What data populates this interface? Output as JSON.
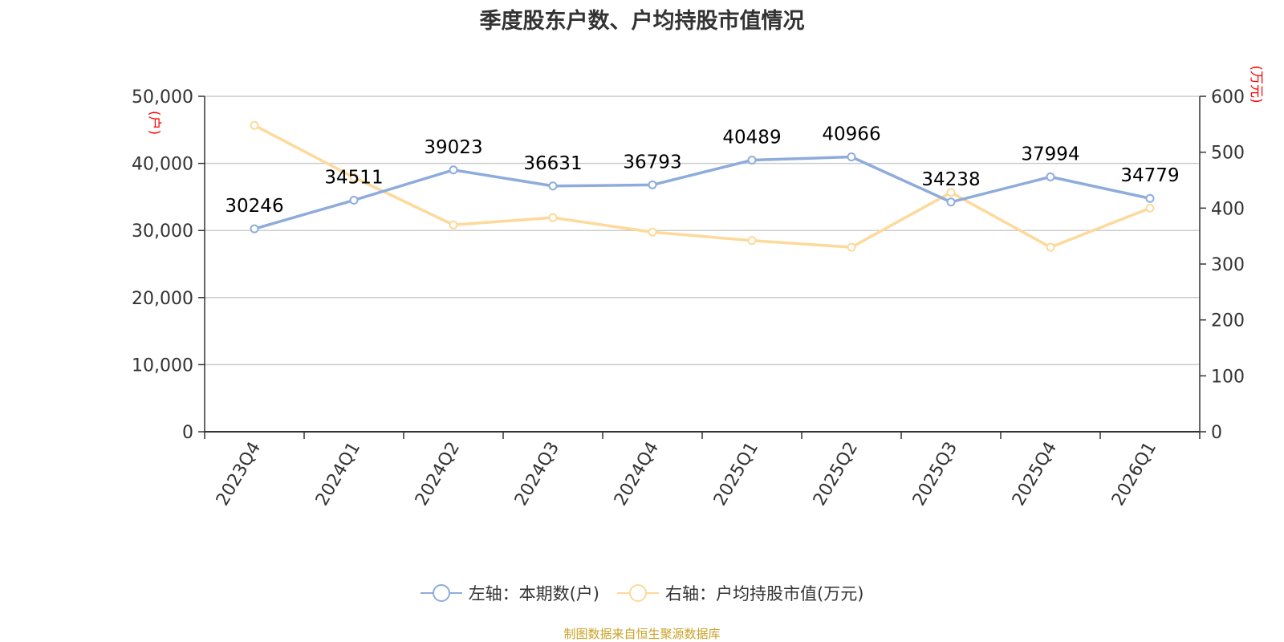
{
  "title": "季度股东户数、户均持股市值情况",
  "colors": {
    "left_series": "#8eacdb",
    "right_series": "#fdd99a",
    "unit_label": "#ff0000",
    "footer": "#c9a227"
  },
  "chart_data": {
    "type": "line",
    "title": "季度股东户数、户均持股市值情况",
    "categories": [
      "2023Q4",
      "2024Q1",
      "2024Q2",
      "2024Q3",
      "2024Q4",
      "2025Q1",
      "2025Q2",
      "2025Q3",
      "2025Q4",
      "2026Q1"
    ],
    "left_axis": {
      "unit": "(户)",
      "ylim": [
        0,
        50000
      ],
      "ticks": [
        "0",
        "10,000",
        "20,000",
        "30,000",
        "40,000",
        "50,000"
      ]
    },
    "right_axis": {
      "unit": "(万元)",
      "ylim": [
        0,
        600
      ],
      "ticks": [
        "0",
        "100",
        "200",
        "300",
        "400",
        "500",
        "600"
      ]
    },
    "series": [
      {
        "name": "左轴：本期数(户)",
        "axis": "left",
        "values": [
          30246,
          34511,
          39023,
          36631,
          36793,
          40489,
          40966,
          34238,
          37994,
          34779
        ],
        "data_labels": true
      },
      {
        "name": "右轴：户均持股市值(万元)",
        "axis": "right",
        "values": [
          548,
          455,
          370,
          383,
          357,
          342,
          330,
          428,
          330,
          400
        ],
        "data_labels": false
      }
    ],
    "grid": true,
    "legend": "bottom"
  },
  "legend": [
    "左轴：本期数(户)",
    "右轴：户均持股市值(万元)"
  ],
  "footer": "制图数据来自恒生聚源数据库"
}
